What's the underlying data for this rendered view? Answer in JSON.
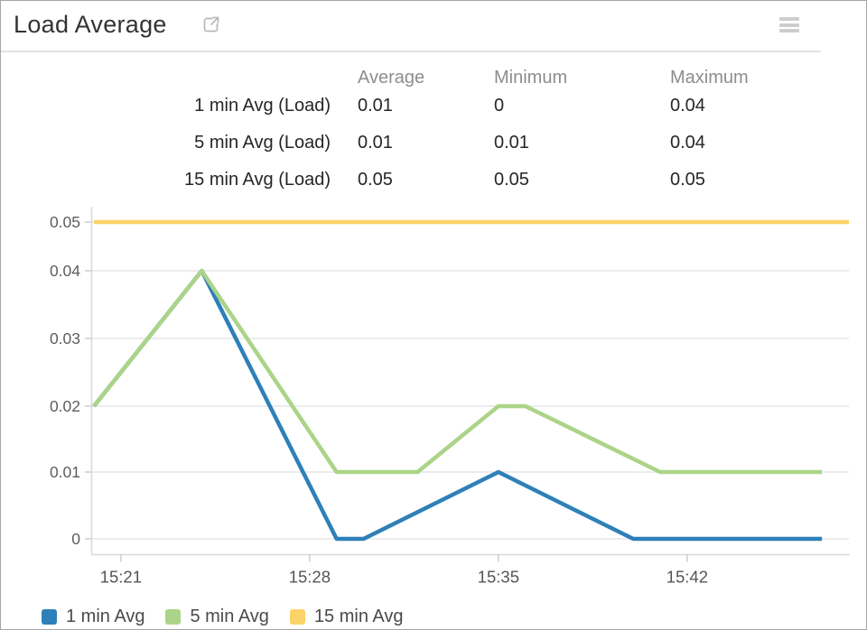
{
  "widget": {
    "title": "Load Average",
    "title_icon": "external-link-icon",
    "menu_icon": "hamburger-menu-icon"
  },
  "stats_table": {
    "columns": [
      "Average",
      "Minimum",
      "Maximum"
    ],
    "rows": [
      {
        "label": "1 min Avg (Load)",
        "values": [
          "0.01",
          "0",
          "0.04"
        ]
      },
      {
        "label": "5 min Avg (Load)",
        "values": [
          "0.01",
          "0.01",
          "0.04"
        ]
      },
      {
        "label": "15 min Avg (Load)",
        "values": [
          "0.05",
          "0.05",
          "0.05"
        ]
      }
    ]
  },
  "chart_data": {
    "type": "line",
    "title": "Load Average",
    "xlabel": "",
    "ylabel": "",
    "ylim": [
      0,
      0.05
    ],
    "y_ticks": [
      0,
      0.01,
      0.02,
      0.03,
      0.04,
      0.05
    ],
    "y_tick_labels": [
      "0",
      "0.01",
      "0.02",
      "0.03",
      "0.04",
      "0.05"
    ],
    "x_ticks": [
      "15:21",
      "15:28",
      "15:35",
      "15:42"
    ],
    "x_range": [
      "15:20",
      "15:48"
    ],
    "grid": "horizontal",
    "legend_position": "bottom",
    "series": [
      {
        "name": "1 min Avg",
        "color": "#2e80b9",
        "points": [
          [
            "15:20",
            0.02
          ],
          [
            "15:24",
            0.04
          ],
          [
            "15:29",
            0
          ],
          [
            "15:30",
            0
          ],
          [
            "15:35",
            0.01
          ],
          [
            "15:40",
            0
          ],
          [
            "15:47",
            0
          ]
        ]
      },
      {
        "name": "5 min Avg",
        "color": "#abd488",
        "points": [
          [
            "15:20",
            0.02
          ],
          [
            "15:24",
            0.04
          ],
          [
            "15:29",
            0.01
          ],
          [
            "15:32",
            0.01
          ],
          [
            "15:35",
            0.02
          ],
          [
            "15:36",
            0.02
          ],
          [
            "15:41",
            0.01
          ],
          [
            "15:47",
            0.01
          ]
        ]
      },
      {
        "name": "15 min Avg",
        "color": "#fbd368",
        "points": [
          [
            "15:20",
            0.05
          ],
          [
            "15:48",
            0.05
          ]
        ]
      }
    ]
  },
  "legend": {
    "items": [
      {
        "label": "1 min Avg",
        "color": "#2e80b9"
      },
      {
        "label": "5 min Avg",
        "color": "#abd488"
      },
      {
        "label": "15 min Avg",
        "color": "#fbd368"
      }
    ]
  },
  "colors": {
    "line_blue": "#2e80b9",
    "line_green": "#abd488",
    "line_yellow": "#fbd368",
    "grid": "#ececec",
    "axis": "#d8d8d8",
    "tick": "#cccccc"
  }
}
